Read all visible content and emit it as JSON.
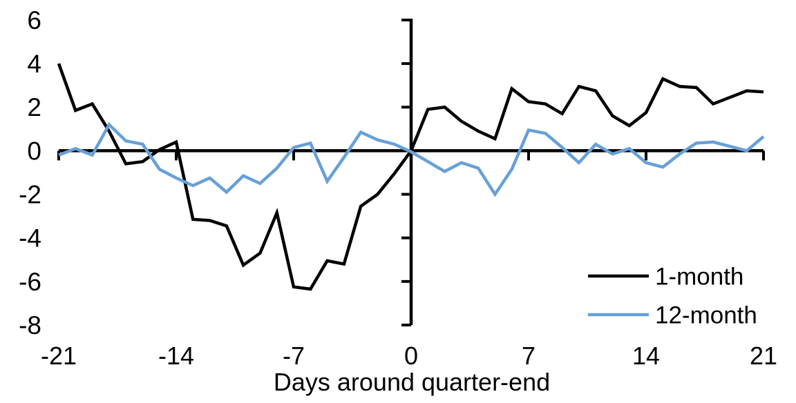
{
  "chart_data": {
    "type": "line",
    "title": "",
    "xlabel": "Days around quarter-end",
    "ylabel": "",
    "xlim": [
      -21,
      21
    ],
    "ylim": [
      -8,
      6
    ],
    "xticks": [
      -21,
      -14,
      -7,
      0,
      7,
      14,
      21
    ],
    "yticks": [
      6,
      4,
      2,
      0,
      -2,
      -4,
      -6,
      -8
    ],
    "grid": "off",
    "legend_position": "inside-bottom-right",
    "x": [
      -21,
      -20,
      -19,
      -18,
      -17,
      -16,
      -15,
      -14,
      -13,
      -12,
      -11,
      -10,
      -9,
      -8,
      -7,
      -6,
      -5,
      -4,
      -3,
      -2,
      -1,
      0,
      1,
      2,
      3,
      4,
      5,
      6,
      7,
      8,
      9,
      10,
      11,
      12,
      13,
      14,
      15,
      16,
      17,
      18,
      19,
      20,
      21
    ],
    "series": [
      {
        "name": "1-month",
        "color": "#000000",
        "values": [
          4.0,
          1.85,
          2.15,
          0.9,
          -0.6,
          -0.5,
          0.05,
          0.4,
          -3.15,
          -3.2,
          -3.45,
          -5.25,
          -4.7,
          -2.85,
          -6.25,
          -6.35,
          -5.05,
          -5.2,
          -2.55,
          -2.0,
          -1.05,
          0.0,
          1.9,
          2.0,
          1.35,
          0.9,
          0.55,
          2.85,
          2.25,
          2.15,
          1.7,
          2.95,
          2.75,
          1.6,
          1.15,
          1.75,
          3.3,
          2.95,
          2.9,
          2.15,
          2.45,
          2.75,
          2.7
        ]
      },
      {
        "name": "12-month",
        "color": "#67a0d8",
        "values": [
          -0.2,
          0.1,
          -0.2,
          1.2,
          0.45,
          0.3,
          -0.85,
          -1.25,
          -1.6,
          -1.25,
          -1.9,
          -1.15,
          -1.5,
          -0.8,
          0.15,
          0.35,
          -1.4,
          -0.3,
          0.85,
          0.5,
          0.3,
          -0.05,
          -0.5,
          -0.95,
          -0.55,
          -0.8,
          -2.0,
          -0.85,
          0.95,
          0.8,
          0.15,
          -0.55,
          0.3,
          -0.15,
          0.1,
          -0.55,
          -0.75,
          -0.15,
          0.35,
          0.4,
          0.2,
          0.0,
          0.65
        ]
      }
    ],
    "axis_color": "#000000"
  }
}
